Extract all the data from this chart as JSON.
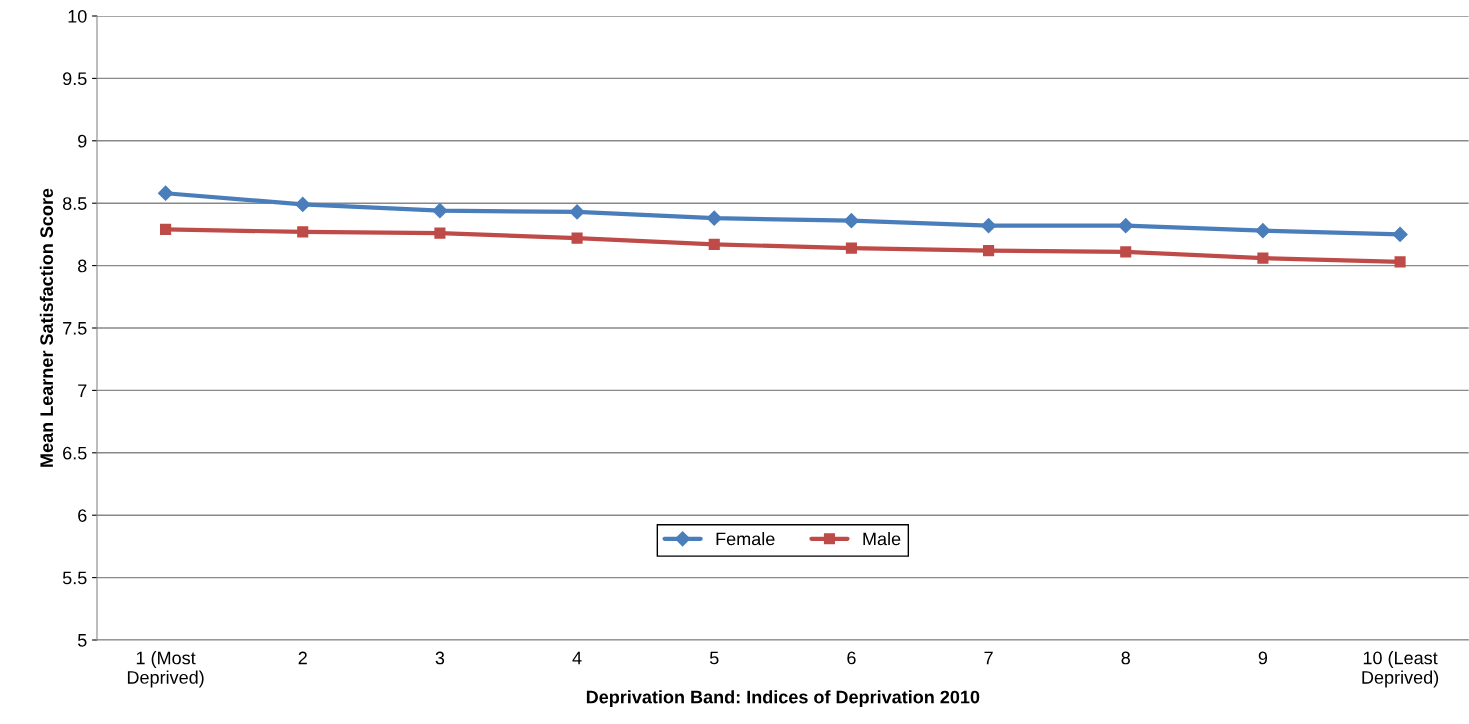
{
  "chart_data": {
    "type": "line",
    "xlabel": "Deprivation Band: Indices of Deprivation 2010",
    "ylabel": "Mean Learner Satisfaction Score",
    "categories": [
      "1 (Most\nDeprived)",
      "2",
      "3",
      "4",
      "5",
      "6",
      "7",
      "8",
      "9",
      "10 (Least\nDeprived)"
    ],
    "series": [
      {
        "name": "Female",
        "color": "#4a7ebb",
        "marker": "diamond",
        "values": [
          8.58,
          8.49,
          8.44,
          8.43,
          8.38,
          8.36,
          8.32,
          8.32,
          8.28,
          8.25
        ]
      },
      {
        "name": "Male",
        "color": "#be4b48",
        "marker": "square",
        "values": [
          8.29,
          8.27,
          8.26,
          8.22,
          8.17,
          8.14,
          8.12,
          8.11,
          8.06,
          8.03
        ]
      }
    ],
    "ylim": [
      5,
      10
    ],
    "yticks": [
      5,
      5.5,
      6,
      6.5,
      7,
      7.5,
      8,
      8.5,
      9,
      9.5,
      10
    ],
    "grid": "y",
    "legend": "bottom"
  }
}
